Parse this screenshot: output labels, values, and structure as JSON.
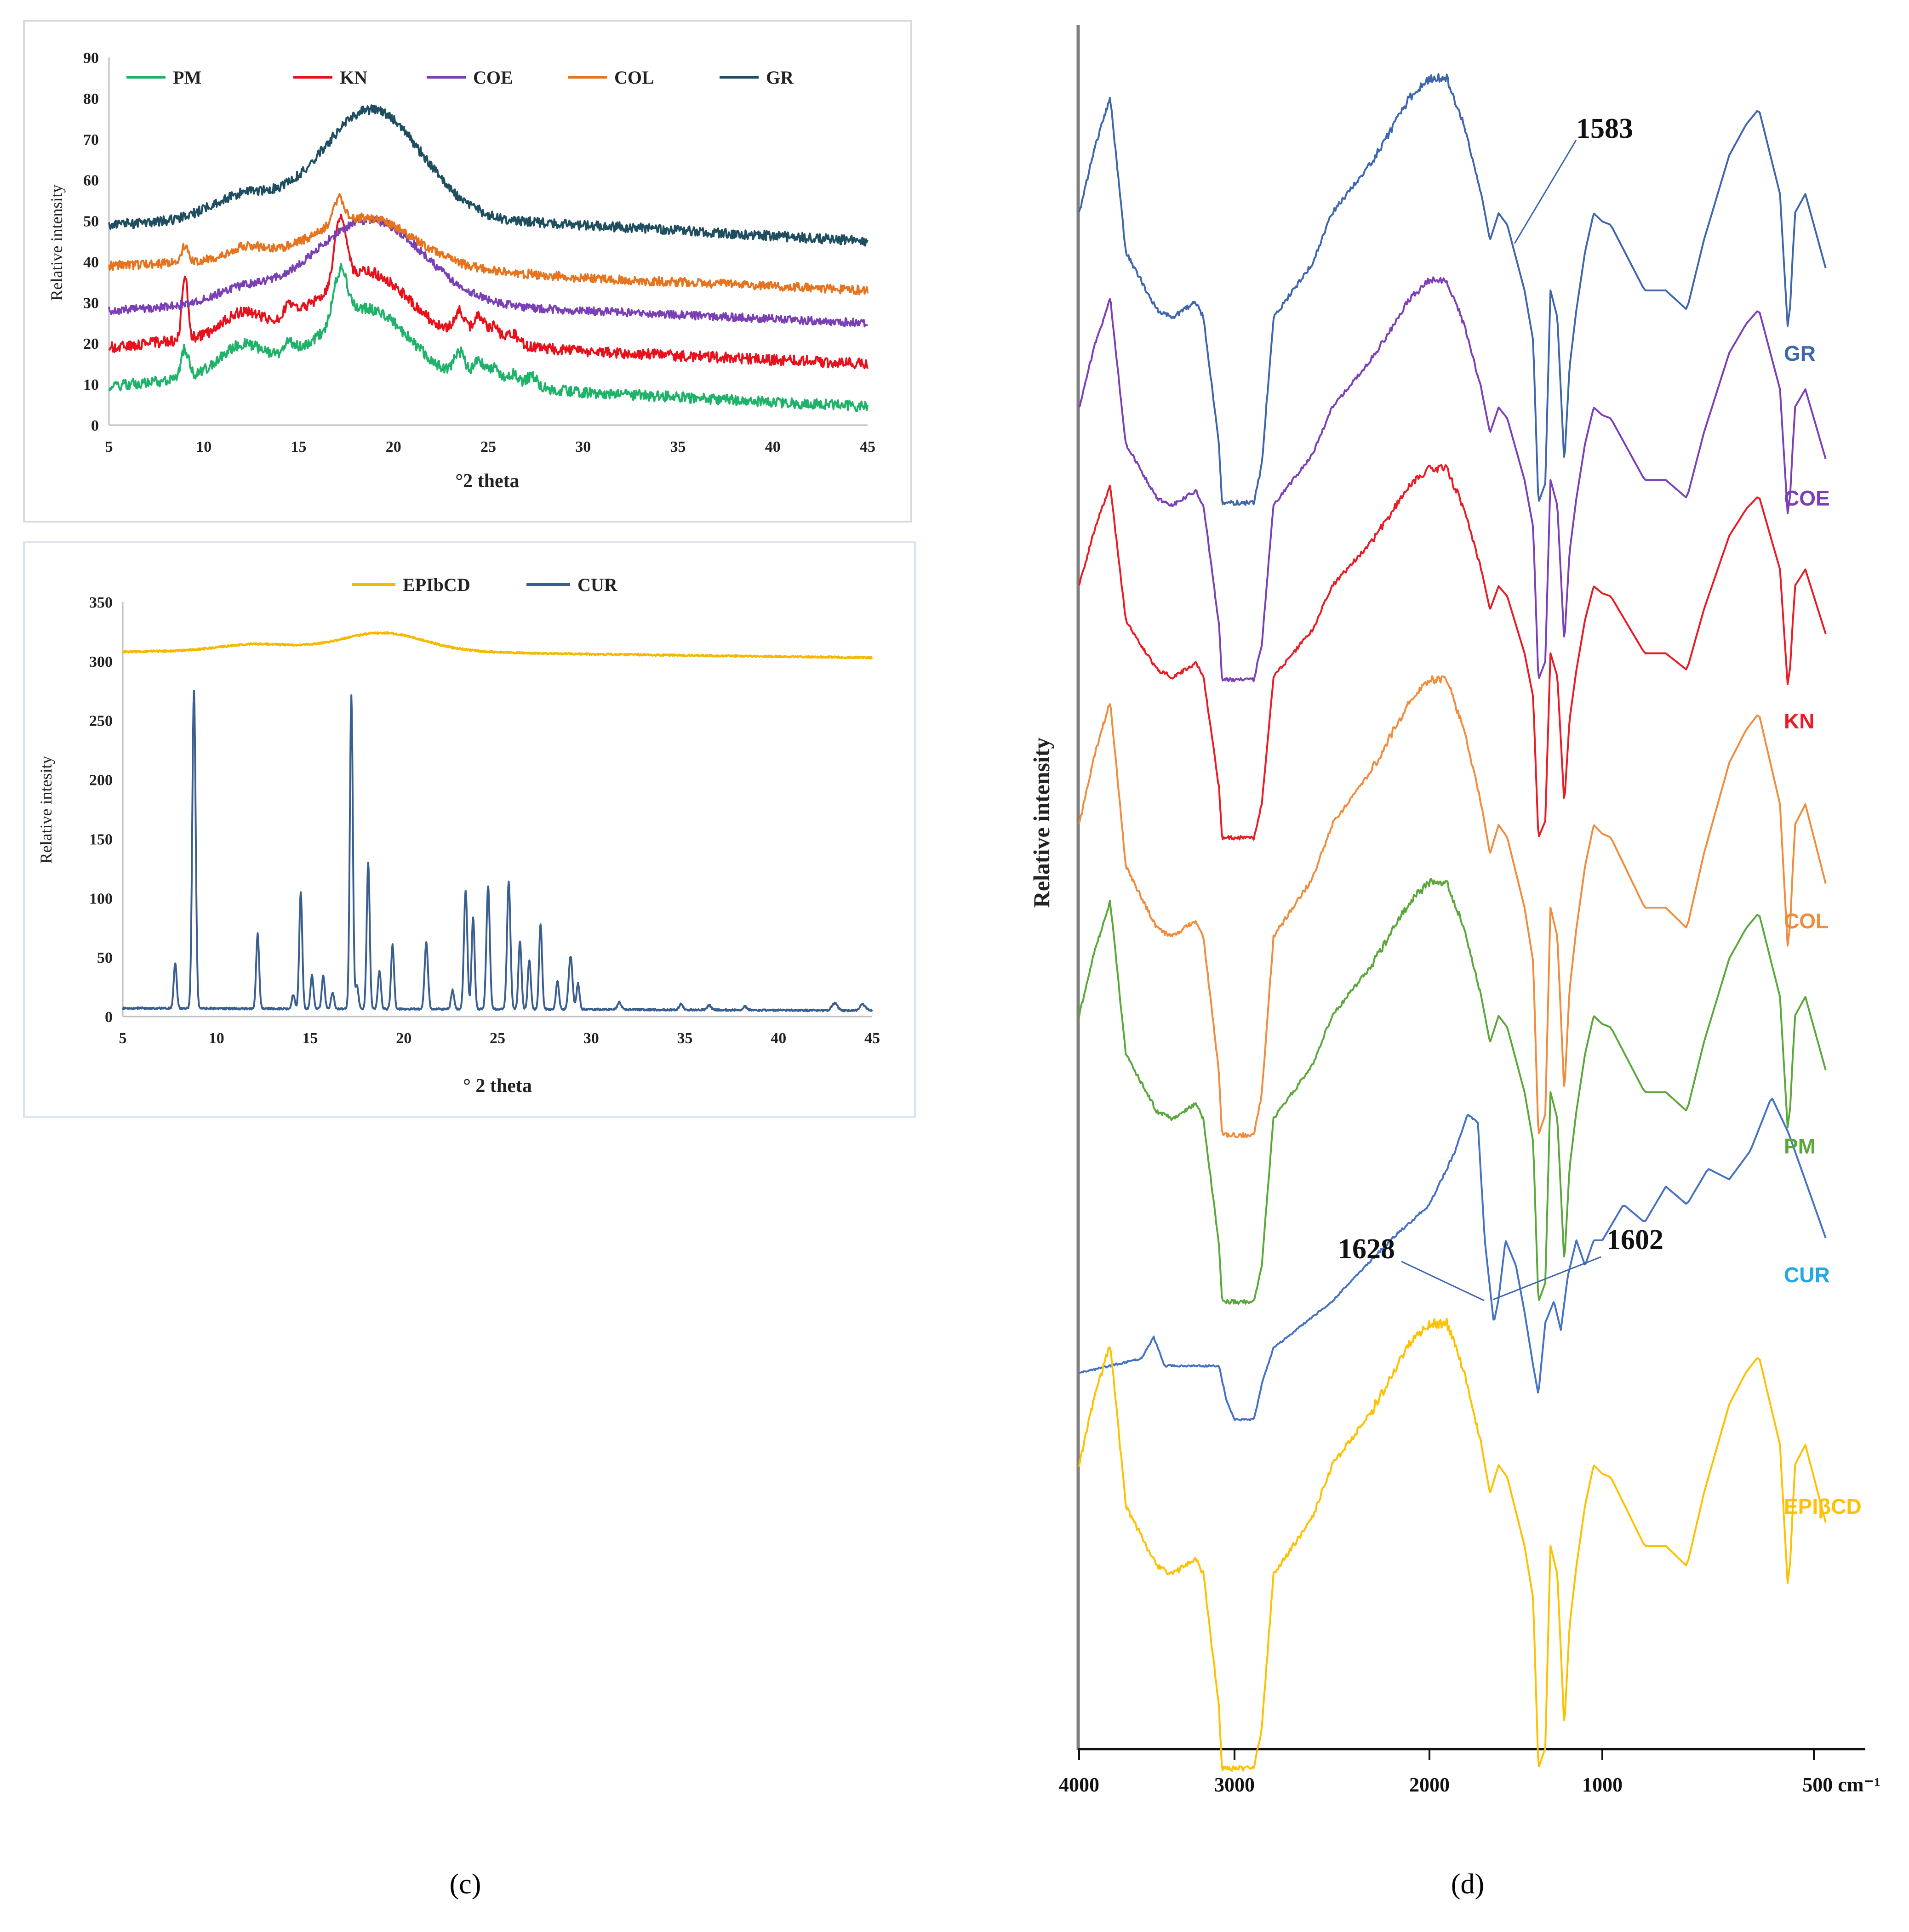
{
  "figure": {
    "panel_c": "(c)",
    "panel_d": "(d)"
  },
  "colors": {
    "PM": "#1fb36a",
    "KN": "#e8101a",
    "COE": "#7b3fb5",
    "COL": "#e6731e",
    "GR": "#1f4e61",
    "EPIbCD": "#f5b800",
    "CUR": "#3a5f8f",
    "ftir_GR": "#3d66ad",
    "ftir_COE": "#7c3fb8",
    "ftir_KN": "#ea1b24",
    "ftir_COL": "#f08c3c",
    "ftir_PM": "#5aa83a",
    "ftir_CUR": "#4472c4",
    "ftir_EPI": "#ffc000",
    "ftir_CUR_label": "#21a9e6"
  },
  "chart_data": [
    {
      "id": "xrd-complexes",
      "type": "line",
      "title": "",
      "xlabel": "°2 theta",
      "ylabel": "Relative intensity",
      "xlim": [
        5,
        45
      ],
      "ylim": [
        0,
        90
      ],
      "xticks": [
        "5",
        "10",
        "15",
        "20",
        "25",
        "30",
        "35",
        "40",
        "45"
      ],
      "yticks": [
        "0",
        "10",
        "20",
        "30",
        "40",
        "50",
        "60",
        "70",
        "80",
        "90"
      ],
      "legend": [
        "PM",
        "KN",
        "COE",
        "COL",
        "GR"
      ],
      "legend_position": "top",
      "series": [
        {
          "name": "PM",
          "color_key": "PM",
          "baseline": [
            [
              5,
              9.5
            ],
            [
              15,
              14
            ],
            [
              30,
              8
            ],
            [
              45,
              4.5
            ]
          ],
          "noise": 1.3,
          "peaks": [
            [
              9,
              7,
              0.2
            ],
            [
              12,
              7,
              1.2
            ],
            [
              14.5,
              3,
              0.3
            ],
            [
              17.2,
              12,
              0.35
            ],
            [
              18.6,
              16,
              2.2
            ],
            [
              23.5,
              6,
              0.3
            ],
            [
              24.5,
              5,
              0.3
            ],
            [
              25.3,
              4,
              0.3
            ],
            [
              26.3,
              3,
              0.3
            ],
            [
              27.3,
              3,
              0.3
            ]
          ]
        },
        {
          "name": "KN",
          "color_key": "KN",
          "baseline": [
            [
              5,
              19
            ],
            [
              15,
              24
            ],
            [
              30,
              18
            ],
            [
              45,
              15
            ]
          ],
          "noise": 1.3,
          "peaks": [
            [
              9,
              16,
              0.15
            ],
            [
              12,
              5,
              1.0
            ],
            [
              14.5,
              3,
              0.3
            ],
            [
              17.2,
              16,
              0.3
            ],
            [
              18.6,
              15,
              2.2
            ],
            [
              23.5,
              6,
              0.3
            ],
            [
              24.5,
              6,
              0.3
            ],
            [
              25.3,
              4,
              0.3
            ],
            [
              26.3,
              3,
              0.3
            ]
          ]
        },
        {
          "name": "COE",
          "color_key": "COE",
          "baseline": [
            [
              5,
              28
            ],
            [
              15,
              31
            ],
            [
              30,
              28
            ],
            [
              45,
              25
            ]
          ],
          "noise": 1.0,
          "peaks": [
            [
              12,
              3,
              1.5
            ],
            [
              18.8,
              20,
              2.8
            ]
          ]
        },
        {
          "name": "COL",
          "color_key": "COL",
          "baseline": [
            [
              5,
              39
            ],
            [
              15,
              41
            ],
            [
              30,
              36
            ],
            [
              45,
              33
            ]
          ],
          "noise": 1.1,
          "peaks": [
            [
              9,
              4,
              0.2
            ],
            [
              12.2,
              3,
              1.0
            ],
            [
              17.1,
              6,
              0.3
            ],
            [
              18.6,
              11,
              2.5
            ]
          ]
        },
        {
          "name": "GR",
          "color_key": "GR",
          "baseline": [
            [
              5,
              49
            ],
            [
              15,
              52
            ],
            [
              30,
              49
            ],
            [
              45,
              45
            ]
          ],
          "noise": 1.2,
          "peaks": [
            [
              12,
              5,
              1.6
            ],
            [
              18.9,
              26,
              2.6
            ]
          ]
        }
      ]
    },
    {
      "id": "xrd-pure",
      "type": "line",
      "title": "",
      "xlabel": "° 2 theta",
      "ylabel": "Relative intesity",
      "xlim": [
        5,
        45
      ],
      "ylim": [
        0,
        350
      ],
      "xticks": [
        "5",
        "10",
        "15",
        "20",
        "25",
        "30",
        "35",
        "40",
        "45"
      ],
      "yticks": [
        "0",
        "50",
        "100",
        "150",
        "200",
        "250",
        "300",
        "350"
      ],
      "legend": [
        "EPIbCD",
        "CUR"
      ],
      "legend_position": "top",
      "series": [
        {
          "name": "EPIbCD",
          "color_key": "EPIbCD",
          "baseline": [
            [
              5,
              308
            ],
            [
              15,
              310
            ],
            [
              30,
              306
            ],
            [
              45,
              303
            ]
          ],
          "noise": 0.8,
          "peaks": [
            [
              12,
              5,
              1.8
            ],
            [
              18.9,
              15,
              2.2
            ]
          ]
        },
        {
          "name": "CUR",
          "color_key": "CUR",
          "baseline": [
            [
              5,
              7
            ],
            [
              30,
              6
            ],
            [
              45,
              5
            ]
          ],
          "noise": 0.8,
          "peaks": [
            [
              7.8,
              38,
              0.08
            ],
            [
              8.8,
              268,
              0.09
            ],
            [
              12.2,
              63,
              0.08
            ],
            [
              14.1,
              12,
              0.08
            ],
            [
              14.5,
              98,
              0.08
            ],
            [
              15.1,
              28,
              0.08
            ],
            [
              15.7,
              28,
              0.08
            ],
            [
              16.2,
              14,
              0.08
            ],
            [
              17.2,
              264,
              0.08
            ],
            [
              17.5,
              20,
              0.08
            ],
            [
              18.1,
              124,
              0.08
            ],
            [
              18.7,
              32,
              0.08
            ],
            [
              19.4,
              54,
              0.08
            ],
            [
              21.2,
              56,
              0.09
            ],
            [
              22.6,
              16,
              0.08
            ],
            [
              23.3,
              100,
              0.09
            ],
            [
              23.7,
              78,
              0.08
            ],
            [
              24.5,
              104,
              0.09
            ],
            [
              25.6,
              108,
              0.09
            ],
            [
              26.2,
              58,
              0.08
            ],
            [
              26.7,
              42,
              0.08
            ],
            [
              27.3,
              72,
              0.08
            ],
            [
              28.2,
              24,
              0.08
            ],
            [
              28.9,
              45,
              0.1
            ],
            [
              29.3,
              22,
              0.08
            ],
            [
              31.5,
              6,
              0.1
            ],
            [
              34.8,
              5,
              0.1
            ],
            [
              36.3,
              4,
              0.1
            ],
            [
              38.2,
              3,
              0.1
            ],
            [
              43,
              6,
              0.15
            ],
            [
              44.5,
              5,
              0.15
            ]
          ]
        }
      ]
    },
    {
      "id": "ftir",
      "type": "line",
      "title": "",
      "xlabel": "",
      "ylabel": "Relative intensity",
      "xticks": [
        "4000",
        "3000",
        "2000",
        "1000",
        "500 cm⁻¹"
      ],
      "series_labels": [
        "GR",
        "COE",
        "KN",
        "COL",
        "PM",
        "CUR",
        "EPIβCD"
      ],
      "annotations": [
        "1583",
        "1628",
        "1602"
      ],
      "series": [
        {
          "name": "GR",
          "color_key": "ftir_GR",
          "label_index": 0,
          "offset": -10
        },
        {
          "name": "COE",
          "color_key": "ftir_COE",
          "label_index": 1,
          "offset": 0
        },
        {
          "name": "KN",
          "color_key": "ftir_KN",
          "label_index": 2,
          "offset": 0
        },
        {
          "name": "COL",
          "color_key": "ftir_COL",
          "label_index": 3,
          "offset": 0
        },
        {
          "name": "PM",
          "color_key": "ftir_PM",
          "label_index": 4,
          "offset": 0
        },
        {
          "name": "CUR",
          "color_key": "ftir_CUR",
          "label_index": 5,
          "label_color_key": "ftir_CUR_label",
          "offset": 0
        },
        {
          "name": "EPIβCD",
          "color_key": "ftir_EPI",
          "label_index": 6,
          "offset": 0
        }
      ]
    }
  ]
}
